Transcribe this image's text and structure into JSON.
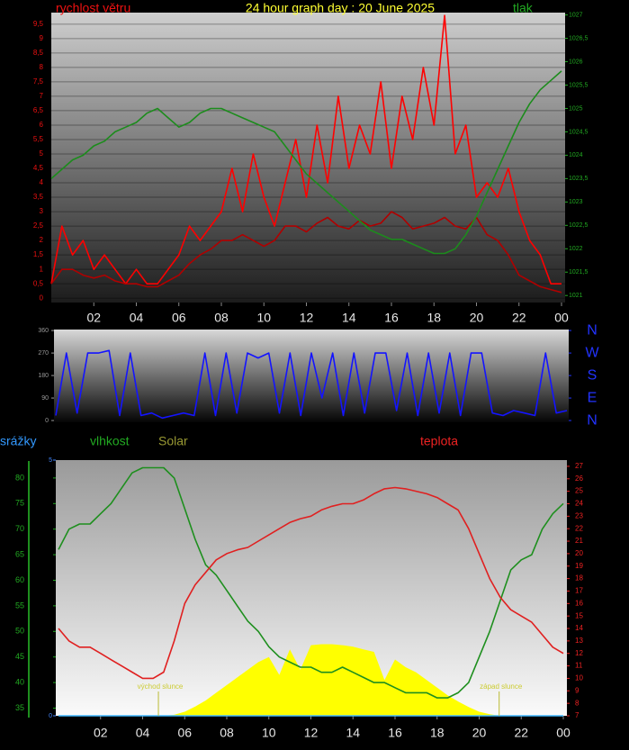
{
  "chart_data": [
    {
      "type": "line",
      "title": "24 hour graph day : 20 June 2025",
      "x": [
        0,
        0.5,
        1,
        1.5,
        2,
        2.5,
        3,
        3.5,
        4,
        4.5,
        5,
        5.5,
        6,
        6.5,
        7,
        7.5,
        8,
        8.5,
        9,
        9.5,
        10,
        10.5,
        11,
        11.5,
        12,
        12.5,
        13,
        13.5,
        14,
        14.5,
        15,
        15.5,
        16,
        16.5,
        17,
        17.5,
        18,
        18.5,
        19,
        19.5,
        20,
        20.5,
        21,
        21.5,
        22,
        22.5,
        23,
        23.5,
        24
      ],
      "xlim": [
        0,
        24
      ],
      "xticks": [
        {
          "value": 2,
          "label": "02"
        },
        {
          "value": 4,
          "label": "04"
        },
        {
          "value": 6,
          "label": "06"
        },
        {
          "value": 8,
          "label": "08"
        },
        10,
        12,
        14,
        16,
        18,
        20,
        22,
        {
          "value": 24,
          "label": "00"
        }
      ],
      "ylim": [
        -0.15,
        9.9
      ],
      "yticks": [
        0,
        {
          "value": 0.5,
          "label": "0,5"
        },
        1,
        {
          "value": 1.5,
          "label": "1,5"
        },
        2,
        {
          "value": 2.5,
          "label": "2,5"
        },
        3,
        {
          "value": 3.5,
          "label": "3,5"
        },
        4,
        {
          "value": 4.5,
          "label": "4,5"
        },
        5,
        {
          "value": 5.5,
          "label": "5,5"
        },
        6,
        {
          "value": 6.5,
          "label": "6,5"
        },
        7,
        {
          "value": 7.5,
          "label": "7,5"
        },
        8,
        {
          "value": 8.5,
          "label": "8,5"
        },
        9,
        {
          "value": 9.5,
          "label": "9,5"
        }
      ],
      "y2lim": [
        1020.85,
        1027.05
      ],
      "y2ticks": [
        1021,
        {
          "value": 1021.5,
          "label": "1021,5"
        },
        1022,
        {
          "value": 1022.5,
          "label": "1022,5"
        },
        1023,
        {
          "value": 1023.5,
          "label": "1023,5"
        },
        1024,
        {
          "value": 1024.5,
          "label": "1024,5"
        },
        1025,
        {
          "value": 1025.5,
          "label": "1025,5"
        },
        1026,
        {
          "value": 1026.5,
          "label": "1026,5"
        },
        1027
      ],
      "grid": true,
      "series": [
        {
          "name": "rychlost větru",
          "color": "#ff0000",
          "values": [
            0.5,
            2.5,
            1.5,
            2,
            1,
            1.5,
            1,
            0.5,
            1,
            0.5,
            0.5,
            1,
            1.5,
            2.5,
            2,
            2.5,
            3,
            4.5,
            3,
            5,
            3.5,
            2.5,
            4,
            5.5,
            3.5,
            6,
            4,
            7,
            4.5,
            6,
            5,
            7.5,
            4.5,
            7,
            5.5,
            8,
            6,
            9.8,
            5,
            6,
            3.5,
            4,
            3.5,
            4.5,
            3,
            2,
            1.5,
            0.5,
            0.5
          ]
        },
        {
          "color": "#b00000",
          "values": [
            0.5,
            1,
            1,
            0.8,
            0.7,
            0.8,
            0.6,
            0.5,
            0.5,
            0.4,
            0.4,
            0.6,
            0.8,
            1.2,
            1.5,
            1.7,
            2,
            2,
            2.2,
            2,
            1.8,
            2,
            2.5,
            2.5,
            2.3,
            2.6,
            2.8,
            2.5,
            2.4,
            2.7,
            2.5,
            2.6,
            3,
            2.8,
            2.4,
            2.5,
            2.6,
            2.8,
            2.5,
            2.4,
            2.8,
            2.2,
            2,
            1.5,
            0.8,
            0.6,
            0.4,
            0.3,
            0.2
          ]
        },
        {
          "name": "tlak",
          "color": "#1c8c1c",
          "axis": "y2",
          "values": [
            1023.5,
            1023.7,
            1023.9,
            1024.0,
            1024.2,
            1024.3,
            1024.5,
            1024.6,
            1024.7,
            1024.9,
            1025.0,
            1024.8,
            1024.6,
            1024.7,
            1024.9,
            1025.0,
            1025.0,
            1024.9,
            1024.8,
            1024.7,
            1024.6,
            1024.5,
            1024.2,
            1023.9,
            1023.6,
            1023.4,
            1023.2,
            1023.0,
            1022.8,
            1022.6,
            1022.4,
            1022.3,
            1022.2,
            1022.2,
            1022.1,
            1022.0,
            1021.9,
            1021.9,
            1022.0,
            1022.3,
            1022.7,
            1023.2,
            1023.7,
            1024.2,
            1024.7,
            1025.1,
            1025.4,
            1025.6,
            1025.8
          ]
        }
      ]
    },
    {
      "type": "line",
      "x": [
        0,
        0.5,
        1,
        1.5,
        2,
        2.5,
        3,
        3.5,
        4,
        4.5,
        5,
        5.5,
        6,
        6.5,
        7,
        7.5,
        8,
        8.5,
        9,
        9.5,
        10,
        10.5,
        11,
        11.5,
        12,
        12.5,
        13,
        13.5,
        14,
        14.5,
        15,
        15.5,
        16,
        16.5,
        17,
        17.5,
        18,
        18.5,
        19,
        19.5,
        20,
        20.5,
        21,
        21.5,
        22,
        22.5,
        23,
        23.5,
        24
      ],
      "xlim": [
        0,
        24
      ],
      "ylim": [
        -7,
        364
      ],
      "yticks": [
        0,
        90,
        180,
        270,
        360
      ],
      "y2ticks": [
        {
          "value": 360,
          "label": "N"
        },
        {
          "value": 270,
          "label": "W"
        },
        {
          "value": 180,
          "label": "S"
        },
        {
          "value": 90,
          "label": "E"
        },
        {
          "value": 0,
          "label": "N"
        }
      ],
      "series": [
        {
          "color": "#1414ff",
          "values": [
            20,
            270,
            30,
            270,
            270,
            280,
            20,
            270,
            20,
            30,
            10,
            20,
            30,
            20,
            270,
            20,
            270,
            30,
            270,
            250,
            270,
            30,
            270,
            20,
            270,
            90,
            270,
            20,
            270,
            30,
            270,
            270,
            40,
            270,
            20,
            270,
            30,
            270,
            20,
            270,
            270,
            30,
            20,
            40,
            30,
            20,
            270,
            30,
            40
          ]
        }
      ]
    },
    {
      "type": "line",
      "x": [
        0,
        0.5,
        1,
        1.5,
        2,
        2.5,
        3,
        3.5,
        4,
        4.5,
        5,
        5.5,
        6,
        6.5,
        7,
        7.5,
        8,
        8.5,
        9,
        9.5,
        10,
        10.5,
        11,
        11.5,
        12,
        12.5,
        13,
        13.5,
        14,
        14.5,
        15,
        15.5,
        16,
        16.5,
        17,
        17.5,
        18,
        18.5,
        19,
        19.5,
        20,
        20.5,
        21,
        21.5,
        22,
        22.5,
        23,
        23.5,
        24
      ],
      "xlim": [
        0,
        24
      ],
      "xticks": [
        {
          "value": 2,
          "label": "02"
        },
        {
          "value": 4,
          "label": "04"
        },
        {
          "value": 6,
          "label": "06"
        },
        {
          "value": 8,
          "label": "08"
        },
        10,
        12,
        14,
        16,
        18,
        20,
        22,
        {
          "value": 24,
          "label": "00"
        }
      ],
      "ylim": [
        33.5,
        83.5
      ],
      "yticks": [
        35,
        40,
        45,
        50,
        55,
        60,
        65,
        70,
        75,
        80
      ],
      "y2lim": [
        7,
        27.5
      ],
      "y2ticks": [
        7,
        8,
        9,
        10,
        11,
        12,
        13,
        14,
        15,
        16,
        17,
        18,
        19,
        20,
        21,
        22,
        23,
        24,
        25,
        26,
        27
      ],
      "y3lim": [
        0,
        5
      ],
      "y3ticks": [
        0,
        5
      ],
      "annotations": [
        {
          "text": "východ slunce",
          "x": 4.75
        },
        {
          "text": "západ slunce",
          "x": 20.95
        }
      ],
      "series": [
        {
          "name": "Solar",
          "color": "#ffff00",
          "axis": "y3",
          "style": "area",
          "values": [
            0,
            0,
            0,
            0,
            0,
            0,
            0,
            0,
            0,
            0,
            0,
            0.02,
            0.08,
            0.18,
            0.3,
            0.45,
            0.6,
            0.75,
            0.9,
            1.05,
            1.15,
            0.8,
            1.3,
            0.9,
            1.38,
            1.4,
            1.4,
            1.38,
            1.35,
            1.3,
            1.25,
            0.7,
            1.1,
            0.95,
            0.85,
            0.7,
            0.55,
            0.4,
            0.28,
            0.17,
            0.08,
            0.03,
            0,
            0,
            0,
            0,
            0,
            0,
            0
          ]
        },
        {
          "name": "vlhkost",
          "color": "#1e8f1e",
          "values": [
            66,
            70,
            71,
            71,
            73,
            75,
            78,
            81,
            82,
            82,
            82,
            80,
            74,
            68,
            63,
            61,
            58,
            55,
            52,
            50,
            47,
            45,
            44,
            43,
            43,
            42,
            42,
            43,
            42,
            41,
            40,
            40,
            39,
            38,
            38,
            38,
            37,
            37,
            38,
            40,
            45,
            50,
            56,
            62,
            64,
            65,
            70,
            73,
            75
          ]
        },
        {
          "name": "teplota",
          "color": "#e02020",
          "axis": "y2",
          "values": [
            14,
            13,
            12.5,
            12.5,
            12,
            11.5,
            11,
            10.5,
            10,
            10,
            10.5,
            13,
            16,
            17.5,
            18.5,
            19.5,
            20,
            20.3,
            20.5,
            21,
            21.5,
            22,
            22.5,
            22.8,
            23,
            23.5,
            23.8,
            24,
            24,
            24.3,
            24.8,
            25.2,
            25.3,
            25.2,
            25,
            24.8,
            24.5,
            24,
            23.5,
            22,
            20,
            18,
            16.5,
            15.5,
            15,
            14.5,
            13.5,
            12.5,
            12
          ]
        },
        {
          "name": "srážky",
          "color": "#40b8ff",
          "axis": "y3",
          "values": [
            0,
            0,
            0,
            0,
            0,
            0,
            0,
            0,
            0,
            0,
            0,
            0,
            0,
            0,
            0,
            0,
            0,
            0,
            0,
            0,
            0,
            0,
            0,
            0,
            0,
            0,
            0,
            0,
            0,
            0,
            0,
            0,
            0,
            0,
            0,
            0,
            0,
            0,
            0,
            0,
            0,
            0,
            0,
            0,
            0,
            0,
            0,
            0,
            0
          ]
        }
      ]
    }
  ]
}
